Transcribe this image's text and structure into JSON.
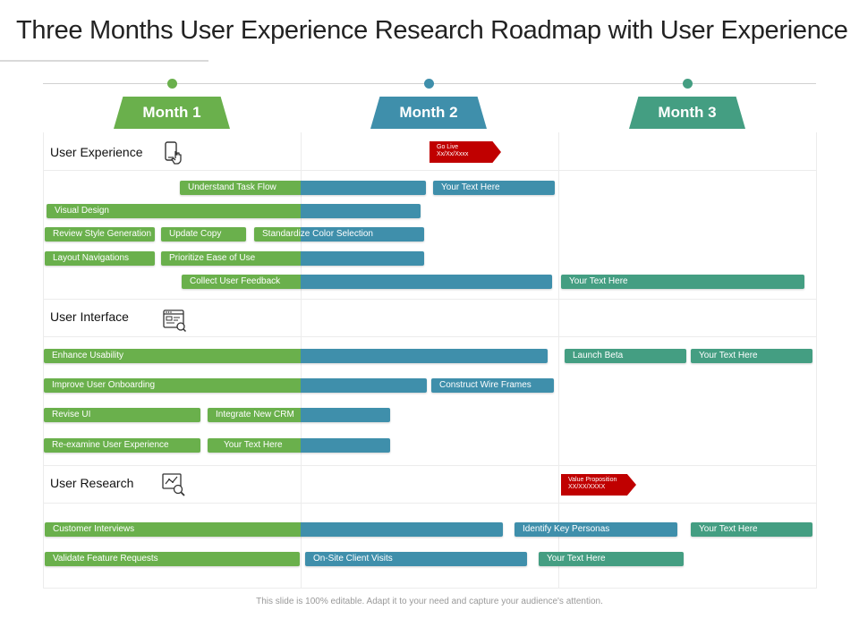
{
  "title": "Three Months User Experience Research Roadmap with User Experience",
  "footer": "This slide is 100% editable. Adapt it to your need and capture your audience's attention.",
  "colors": {
    "green": "#6ab04c",
    "blue": "#3f8fab",
    "teal": "#449e82",
    "red": "#c00000"
  },
  "months": [
    {
      "label": "Month 1",
      "color": "#6ab04c"
    },
    {
      "label": "Month 2",
      "color": "#3f8fab"
    },
    {
      "label": "Month 3",
      "color": "#449e82"
    }
  ],
  "sections": [
    {
      "label": "User Experience",
      "icon": "touch-screen-icon"
    },
    {
      "label": "User Interface",
      "icon": "browser-window-icon"
    },
    {
      "label": "User Research",
      "icon": "chart-magnifier-icon"
    }
  ],
  "milestones": [
    {
      "line1": "Go Live",
      "line2": "Xx/Xx/Xxxx"
    },
    {
      "line1": "Value Proposition",
      "line2": "XX/XX/XXXX"
    }
  ],
  "bars": {
    "understand_task_flow": "Understand Task Flow",
    "ux_text_1": "Your Text Here",
    "visual_design": "Visual Design",
    "review_style_generation": "Review Style Generation",
    "update_copy": "Update Copy",
    "standardize_color_selection": "Standardize Color Selection",
    "layout_navigations": "Layout Navigations",
    "prioritize_ease_of_use": "Prioritize Ease of Use",
    "collect_user_feedback": "Collect User Feedback",
    "ux_text_2": "Your Text Here",
    "enhance_usability": "Enhance Usability",
    "launch_beta": "Launch Beta",
    "ui_text_1": "Your Text Here",
    "improve_user_onboarding": "Improve User Onboarding",
    "construct_wire_frames": "Construct Wire Frames",
    "revise_ui": "Revise UI",
    "integrate_new_crm": "Integrate New CRM",
    "reexamine_user_experience": "Re-examine User Experience",
    "ui_text_2": "Your Text Here",
    "customer_interviews": "Customer Interviews",
    "identify_key_personas": "Identify Key Personas",
    "ur_text_1": "Your Text Here",
    "validate_feature_requests": "Validate Feature Requests",
    "onsite_client_visits": "On-Site Client Visits",
    "ur_text_2": "Your Text Here"
  }
}
